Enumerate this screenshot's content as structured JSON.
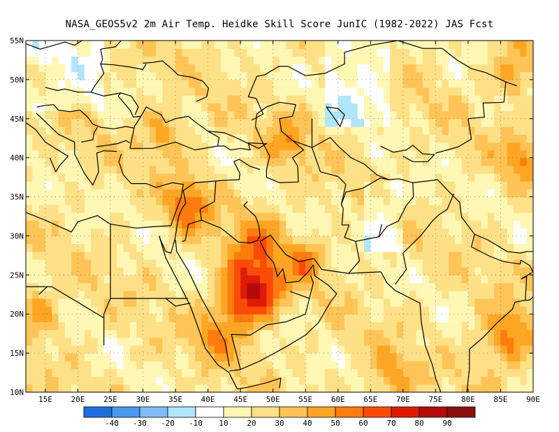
{
  "title": "NASA_GEOS5v2  2m Air Temp. Heidke Skill Score JunIC (1982-2022) JAS Fcst",
  "map": {
    "lon_range": [
      12,
      90
    ],
    "lat_range": [
      10,
      55
    ],
    "lon_ticks": [
      {
        "lon": 15,
        "label": "15E"
      },
      {
        "lon": 20,
        "label": "20E"
      },
      {
        "lon": 25,
        "label": "25E"
      },
      {
        "lon": 30,
        "label": "30E"
      },
      {
        "lon": 35,
        "label": "35E"
      },
      {
        "lon": 40,
        "label": "40E"
      },
      {
        "lon": 45,
        "label": "45E"
      },
      {
        "lon": 50,
        "label": "50E"
      },
      {
        "lon": 55,
        "label": "55E"
      },
      {
        "lon": 60,
        "label": "60E"
      },
      {
        "lon": 65,
        "label": "65E"
      },
      {
        "lon": 70,
        "label": "70E"
      },
      {
        "lon": 75,
        "label": "75E"
      },
      {
        "lon": 80,
        "label": "80E"
      },
      {
        "lon": 85,
        "label": "85E"
      },
      {
        "lon": 90,
        "label": "90E"
      }
    ],
    "lat_ticks": [
      {
        "lat": 10,
        "label": "10N"
      },
      {
        "lat": 15,
        "label": "15N"
      },
      {
        "lat": 20,
        "label": "20N"
      },
      {
        "lat": 25,
        "label": "25N"
      },
      {
        "lat": 30,
        "label": "30N"
      },
      {
        "lat": 35,
        "label": "35N"
      },
      {
        "lat": 40,
        "label": "40N"
      },
      {
        "lat": 45,
        "label": "45N"
      },
      {
        "lat": 50,
        "label": "50N"
      },
      {
        "lat": 55,
        "label": "55N"
      }
    ],
    "gridlines": "dotted",
    "hotspots": [
      {
        "lon": 37,
        "lat": 34,
        "score": 55,
        "r": 3.5
      },
      {
        "lon": 33,
        "lat": 43,
        "score": 48,
        "r": 3.0
      },
      {
        "lon": 45,
        "lat": 21,
        "score": 60,
        "r": 3.5
      },
      {
        "lon": 46,
        "lat": 25,
        "score": 50,
        "r": 4.0
      },
      {
        "lon": 49,
        "lat": 23,
        "score": 55,
        "r": 3.0
      },
      {
        "lon": 55,
        "lat": 27,
        "score": 55,
        "r": 2.5
      },
      {
        "lon": 48,
        "lat": 30,
        "score": 45,
        "r": 4.0
      },
      {
        "lon": 52,
        "lat": 42,
        "score": 45,
        "r": 3.0
      },
      {
        "lon": 86,
        "lat": 17,
        "score": 55,
        "r": 4.0
      },
      {
        "lon": 88,
        "lat": 40,
        "score": 48,
        "r": 3.0
      },
      {
        "lon": 87,
        "lat": 51,
        "score": 48,
        "r": 3.0
      },
      {
        "lon": 68,
        "lat": 12,
        "score": 45,
        "r": 3.5
      },
      {
        "lon": 14,
        "lat": 20,
        "score": 45,
        "r": 3.0
      },
      {
        "lon": 41,
        "lat": 17,
        "score": 45,
        "r": 3.0
      }
    ],
    "colors": {
      "land_outline": "#000000",
      "gridline": "#777777"
    }
  },
  "colorbar": {
    "labels": [
      "-40",
      "-30",
      "-20",
      "-10",
      "10",
      "20",
      "30",
      "40",
      "50",
      "60",
      "70",
      "80",
      "90"
    ],
    "colors": [
      "#1e6fe0",
      "#4b97ee",
      "#7fbcf7",
      "#b0e6f9",
      "#ffffff",
      "#fff7b4",
      "#fee087",
      "#fec457",
      "#fea623",
      "#fe7b0d",
      "#fd4b07",
      "#df1b06",
      "#b30a0a",
      "#8a0f0f"
    ]
  }
}
